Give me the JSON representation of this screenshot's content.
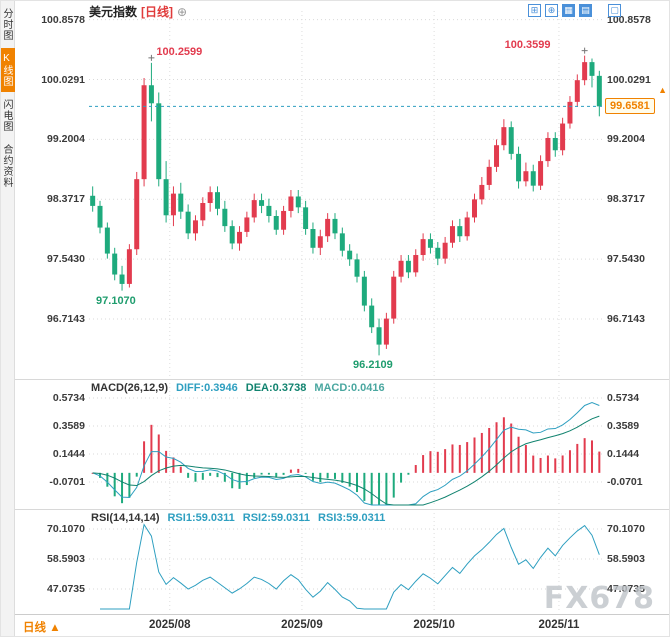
{
  "header": {
    "title": "美元指数",
    "period": "[日线]"
  },
  "icons": {
    "header_plus": "⊕",
    "latest_arrow": "▲"
  },
  "sidebar": {
    "items": [
      {
        "label": "分时图"
      },
      {
        "label": "K线图"
      },
      {
        "label": "闪电图"
      },
      {
        "label": "合约资料"
      }
    ]
  },
  "toolbar": {
    "icons": [
      {
        "name": "grid",
        "glyph": "⊞"
      },
      {
        "name": "add",
        "glyph": "⊕"
      },
      {
        "name": "candle-style",
        "glyph": "▦"
      },
      {
        "name": "panel-split",
        "glyph": "▤"
      },
      {
        "name": "fullscreen",
        "glyph": "▢"
      }
    ]
  },
  "bottom": {
    "period": "日线",
    "arrow": "▲"
  },
  "watermark": "FX678",
  "colors": {
    "up": "#e23b4e",
    "down": "#1eaa7d",
    "grid": "#d9d9d9",
    "current_line": "#2e9fc0",
    "accent": "#f08200",
    "diff_line": "#2e9fc0",
    "dea_line": "#11836f",
    "rsi_line": "#2e9fc0",
    "toolbar_blue": "#4a90d9",
    "annotation_high": "#e23b4e",
    "annotation_low": "#1f9d6e"
  },
  "chart_data": {
    "type": "candlestick",
    "title": "美元指数 [日线]",
    "symbol": "美元指数",
    "period": "日线",
    "y_axis": {
      "labels": [
        "100.8578",
        "100.0291",
        "99.2004",
        "98.3717",
        "97.5430",
        "96.7143"
      ],
      "range": [
        96.05,
        100.95
      ]
    },
    "x_axis": {
      "labels": [
        "2025/08",
        "2025/09",
        "2025/10",
        "2025/11"
      ],
      "tick_indices": [
        11,
        29,
        47,
        64
      ]
    },
    "current_price": 99.6581,
    "current_price_label": "99.6581",
    "annotations": [
      {
        "id": "high1",
        "index": 8,
        "value": 100.2599,
        "label": "100.2599",
        "color": "#e23b4e",
        "placement": "above-right"
      },
      {
        "id": "low1",
        "index": 4,
        "value": 97.107,
        "label": "97.1070",
        "color": "#1f9d6e",
        "placement": "below"
      },
      {
        "id": "low2",
        "index": 39,
        "value": 96.2109,
        "label": "96.2109",
        "color": "#1f9d6e",
        "placement": "below"
      },
      {
        "id": "high2",
        "index": 67,
        "value": 100.3599,
        "label": "100.3599",
        "color": "#e23b4e",
        "placement": "above-left"
      }
    ],
    "candles": [
      [
        98.42,
        98.55,
        98.2,
        98.28
      ],
      [
        98.28,
        98.35,
        97.9,
        97.98
      ],
      [
        97.98,
        98.05,
        97.55,
        97.62
      ],
      [
        97.62,
        97.7,
        97.25,
        97.33
      ],
      [
        97.33,
        97.45,
        97.107,
        97.2
      ],
      [
        97.2,
        97.75,
        97.15,
        97.68
      ],
      [
        97.68,
        98.75,
        97.6,
        98.65
      ],
      [
        98.65,
        100.05,
        98.55,
        99.95
      ],
      [
        99.95,
        100.2599,
        99.45,
        99.7
      ],
      [
        99.7,
        99.85,
        98.55,
        98.65
      ],
      [
        98.65,
        98.9,
        98.05,
        98.15
      ],
      [
        98.15,
        98.55,
        98.0,
        98.45
      ],
      [
        98.45,
        98.6,
        98.1,
        98.2
      ],
      [
        98.2,
        98.3,
        97.82,
        97.9
      ],
      [
        97.9,
        98.15,
        97.8,
        98.08
      ],
      [
        98.08,
        98.4,
        98.0,
        98.32
      ],
      [
        98.32,
        98.55,
        98.2,
        98.47
      ],
      [
        98.47,
        98.55,
        98.15,
        98.24
      ],
      [
        98.24,
        98.35,
        97.92,
        98.0
      ],
      [
        98.0,
        98.08,
        97.68,
        97.76
      ],
      [
        97.76,
        98.0,
        97.66,
        97.92
      ],
      [
        97.92,
        98.2,
        97.85,
        98.12
      ],
      [
        98.12,
        98.45,
        98.05,
        98.36
      ],
      [
        98.36,
        98.45,
        98.18,
        98.28
      ],
      [
        98.28,
        98.38,
        98.05,
        98.14
      ],
      [
        98.14,
        98.22,
        97.88,
        97.95
      ],
      [
        97.95,
        98.28,
        97.88,
        98.21
      ],
      [
        98.21,
        98.5,
        98.12,
        98.41
      ],
      [
        98.41,
        98.5,
        98.18,
        98.26
      ],
      [
        98.26,
        98.35,
        97.88,
        97.96
      ],
      [
        97.96,
        98.05,
        97.62,
        97.7
      ],
      [
        97.7,
        97.95,
        97.6,
        97.86
      ],
      [
        97.86,
        98.18,
        97.78,
        98.1
      ],
      [
        98.1,
        98.18,
        97.82,
        97.9
      ],
      [
        97.9,
        97.98,
        97.58,
        97.66
      ],
      [
        97.66,
        97.75,
        97.45,
        97.54
      ],
      [
        97.54,
        97.62,
        97.22,
        97.3
      ],
      [
        97.3,
        97.38,
        96.82,
        96.9
      ],
      [
        96.9,
        97.0,
        96.52,
        96.6
      ],
      [
        96.6,
        96.72,
        96.2109,
        96.36
      ],
      [
        96.36,
        96.8,
        96.3,
        96.72
      ],
      [
        96.72,
        97.38,
        96.65,
        97.3
      ],
      [
        97.3,
        97.6,
        97.22,
        97.52
      ],
      [
        97.52,
        97.6,
        97.28,
        97.36
      ],
      [
        97.36,
        97.68,
        97.3,
        97.6
      ],
      [
        97.6,
        97.9,
        97.52,
        97.82
      ],
      [
        97.82,
        97.9,
        97.62,
        97.7
      ],
      [
        97.7,
        97.78,
        97.46,
        97.55
      ],
      [
        97.55,
        97.85,
        97.48,
        97.77
      ],
      [
        97.77,
        98.08,
        97.7,
        98.0
      ],
      [
        98.0,
        98.1,
        97.78,
        97.86
      ],
      [
        97.86,
        98.2,
        97.8,
        98.12
      ],
      [
        98.12,
        98.45,
        98.05,
        98.37
      ],
      [
        98.37,
        98.68,
        98.3,
        98.57
      ],
      [
        98.57,
        98.92,
        98.5,
        98.82
      ],
      [
        98.82,
        99.2,
        98.75,
        99.12
      ],
      [
        99.12,
        99.48,
        99.05,
        99.37
      ],
      [
        99.37,
        99.45,
        98.92,
        99.0
      ],
      [
        99.0,
        99.1,
        98.52,
        98.62
      ],
      [
        98.62,
        98.88,
        98.55,
        98.76
      ],
      [
        98.76,
        98.85,
        98.48,
        98.56
      ],
      [
        98.56,
        98.98,
        98.5,
        98.9
      ],
      [
        98.9,
        99.3,
        98.82,
        99.22
      ],
      [
        99.22,
        99.3,
        98.96,
        99.05
      ],
      [
        99.05,
        99.5,
        98.98,
        99.42
      ],
      [
        99.42,
        99.8,
        99.35,
        99.72
      ],
      [
        99.72,
        100.1,
        99.65,
        100.02
      ],
      [
        100.02,
        100.3599,
        99.95,
        100.27
      ],
      [
        100.27,
        100.32,
        99.92,
        100.08
      ],
      [
        100.08,
        100.15,
        99.52,
        99.6581
      ]
    ],
    "indicators": {
      "macd": {
        "title": "MACD(26,12,9)",
        "diff_label": "DIFF:0.3946",
        "dea_label": "DEA:0.3738",
        "macd_label": "MACD:0.0416",
        "diff": 0.3946,
        "dea": 0.3738,
        "macd": 0.0416,
        "axis_labels": [
          "0.5734",
          "0.3589",
          "0.1444",
          "-0.0701"
        ]
      },
      "rsi": {
        "title": "RSI(14,14,14)",
        "rsi1_label": "RSI1:59.0311",
        "rsi2_label": "RSI2:59.0311",
        "rsi3_label": "RSI3:59.0311",
        "rsi1": 59.0311,
        "rsi2": 59.0311,
        "rsi3": 59.0311,
        "axis_labels": [
          "70.1070",
          "58.5903",
          "47.0735"
        ]
      }
    }
  }
}
